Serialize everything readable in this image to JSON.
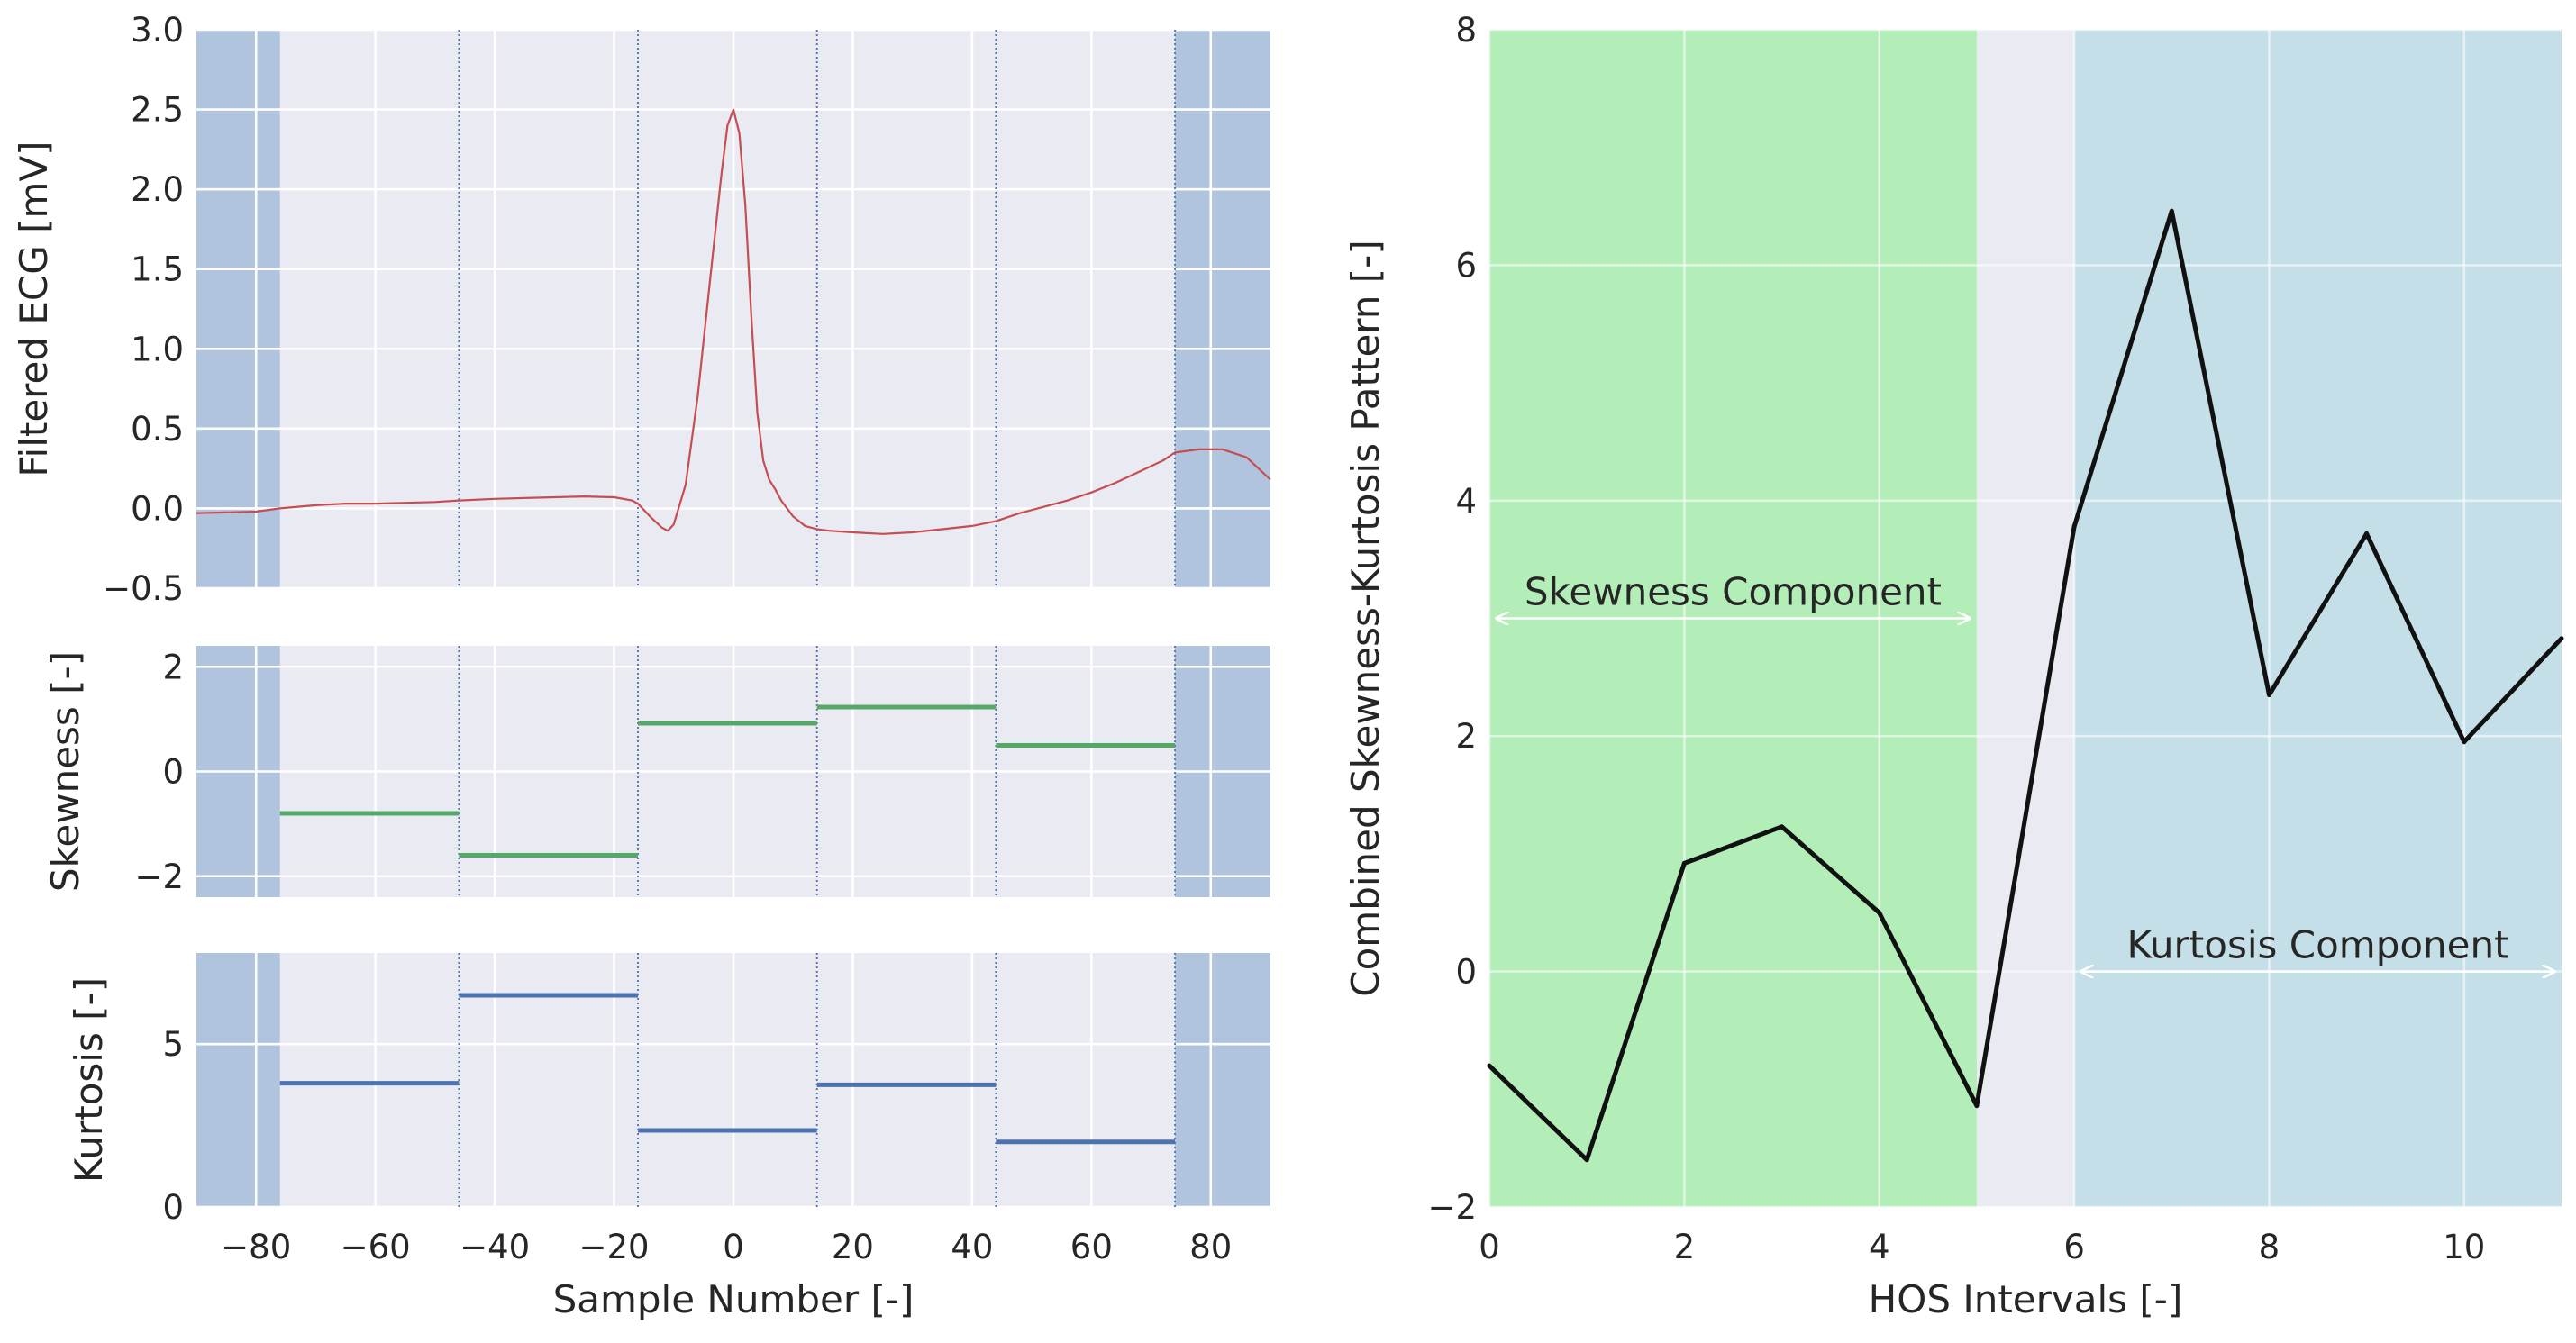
{
  "colors": {
    "panel_bg": "#EAEAF2",
    "grid": "#FFFFFF",
    "shade": "#B0C4DE",
    "ecg_line": "#C44E52",
    "skew_line": "#55A868",
    "kurt_line": "#4C72B0",
    "divider": "#4C72B0",
    "skew_region": "#B3EDB7",
    "kurt_region": "#C4DFE8",
    "combined_line": "#111111",
    "arrow": "#FFFFFF"
  },
  "chart_data": [
    {
      "type": "line",
      "name": "ecg",
      "xlim": [
        -90,
        90
      ],
      "ylim": [
        -0.5,
        3.0
      ],
      "xticks": [
        -80,
        -60,
        -40,
        -20,
        0,
        20,
        40,
        60,
        80
      ],
      "yticks": [
        -0.5,
        0.0,
        0.5,
        1.0,
        1.5,
        2.0,
        2.5,
        3.0
      ],
      "ytick_labels": [
        "−0.5",
        "0.0",
        "0.5",
        "1.0",
        "1.5",
        "2.0",
        "2.5",
        "3.0"
      ],
      "ylabel": "Filtered ECG [mV]",
      "shaded_x": [
        [
          -90,
          -76
        ],
        [
          74,
          90
        ]
      ],
      "dividers": [
        -46,
        -16,
        14,
        44,
        74
      ],
      "x": [
        -90,
        -85,
        -80,
        -76,
        -70,
        -65,
        -60,
        -55,
        -50,
        -46,
        -40,
        -35,
        -30,
        -25,
        -20,
        -17,
        -16,
        -14,
        -12,
        -11,
        -10,
        -8,
        -6,
        -4,
        -2,
        -1,
        0,
        1,
        2,
        3,
        4,
        5,
        6,
        7,
        8,
        10,
        12,
        14,
        16,
        20,
        25,
        30,
        35,
        40,
        44,
        48,
        52,
        56,
        60,
        64,
        68,
        72,
        74,
        78,
        82,
        86,
        90
      ],
      "y": [
        -0.03,
        -0.025,
        -0.02,
        0.0,
        0.02,
        0.03,
        0.03,
        0.035,
        0.04,
        0.05,
        0.06,
        0.065,
        0.07,
        0.075,
        0.07,
        0.05,
        0.03,
        -0.05,
        -0.12,
        -0.14,
        -0.1,
        0.15,
        0.7,
        1.4,
        2.1,
        2.4,
        2.5,
        2.35,
        1.9,
        1.2,
        0.6,
        0.3,
        0.18,
        0.12,
        0.05,
        -0.05,
        -0.11,
        -0.13,
        -0.14,
        -0.15,
        -0.16,
        -0.15,
        -0.13,
        -0.11,
        -0.08,
        -0.03,
        0.01,
        0.05,
        0.1,
        0.16,
        0.23,
        0.3,
        0.35,
        0.37,
        0.37,
        0.32,
        0.18
      ]
    },
    {
      "type": "step",
      "name": "skewness",
      "xlim": [
        -90,
        90
      ],
      "ylim": [
        -2.4,
        2.4
      ],
      "yticks": [
        -2,
        0,
        2
      ],
      "ytick_labels": [
        "−2",
        "0",
        "2"
      ],
      "ylabel": "Skewness [-]",
      "segments": [
        {
          "x0": -76,
          "x1": -46,
          "value": -0.8
        },
        {
          "x0": -46,
          "x1": -16,
          "value": -1.6
        },
        {
          "x0": -16,
          "x1": 14,
          "value": 0.92
        },
        {
          "x0": 14,
          "x1": 44,
          "value": 1.23
        },
        {
          "x0": 44,
          "x1": 74,
          "value": 0.5
        }
      ]
    },
    {
      "type": "step",
      "name": "kurtosis",
      "xlim": [
        -90,
        90
      ],
      "ylim": [
        0,
        7.8
      ],
      "yticks": [
        0,
        5
      ],
      "ytick_labels": [
        "0",
        "5"
      ],
      "ylabel": "Kurtosis [-]",
      "xlabel": "Sample Number [-]",
      "xticks": [
        -80,
        -60,
        -40,
        -20,
        0,
        20,
        40,
        60,
        80
      ],
      "xtick_labels": [
        "−80",
        "−60",
        "−40",
        "−20",
        "0",
        "20",
        "40",
        "60",
        "80"
      ],
      "segments": [
        {
          "x0": -76,
          "x1": -46,
          "value": 3.8
        },
        {
          "x0": -46,
          "x1": -16,
          "value": 6.5
        },
        {
          "x0": -16,
          "x1": 14,
          "value": 2.35
        },
        {
          "x0": 14,
          "x1": 44,
          "value": 3.75
        },
        {
          "x0": 44,
          "x1": 74,
          "value": 2.0
        }
      ]
    },
    {
      "type": "line",
      "name": "combined",
      "xlim": [
        0,
        11
      ],
      "ylim": [
        -2,
        8
      ],
      "xticks": [
        0,
        2,
        4,
        6,
        8,
        10
      ],
      "xtick_labels": [
        "0",
        "2",
        "4",
        "6",
        "8",
        "10"
      ],
      "yticks": [
        -2,
        0,
        2,
        4,
        6,
        8
      ],
      "ytick_labels": [
        "−2",
        "0",
        "2",
        "4",
        "6",
        "8"
      ],
      "xlabel": "HOS Intervals [-]",
      "ylabel": "Combined Skewness-Kurtosis Pattern [-]",
      "regions": [
        {
          "name": "skewness",
          "x0": 0,
          "x1": 5
        },
        {
          "name": "kurtosis",
          "x0": 6,
          "x1": 11
        }
      ],
      "x": [
        0,
        1,
        2,
        3,
        4,
        5,
        6,
        7,
        8,
        9,
        10,
        11
      ],
      "y": [
        -0.8,
        -1.6,
        0.92,
        1.23,
        0.5,
        -1.14,
        3.78,
        6.46,
        2.35,
        3.72,
        1.95,
        2.83
      ],
      "annotations": [
        {
          "text": "Skewness Component",
          "x_from": 0,
          "x_to": 5,
          "y": 3.0
        },
        {
          "text": "Kurtosis Component",
          "x_from": 6,
          "x_to": 11,
          "y": 0.0
        }
      ]
    }
  ]
}
